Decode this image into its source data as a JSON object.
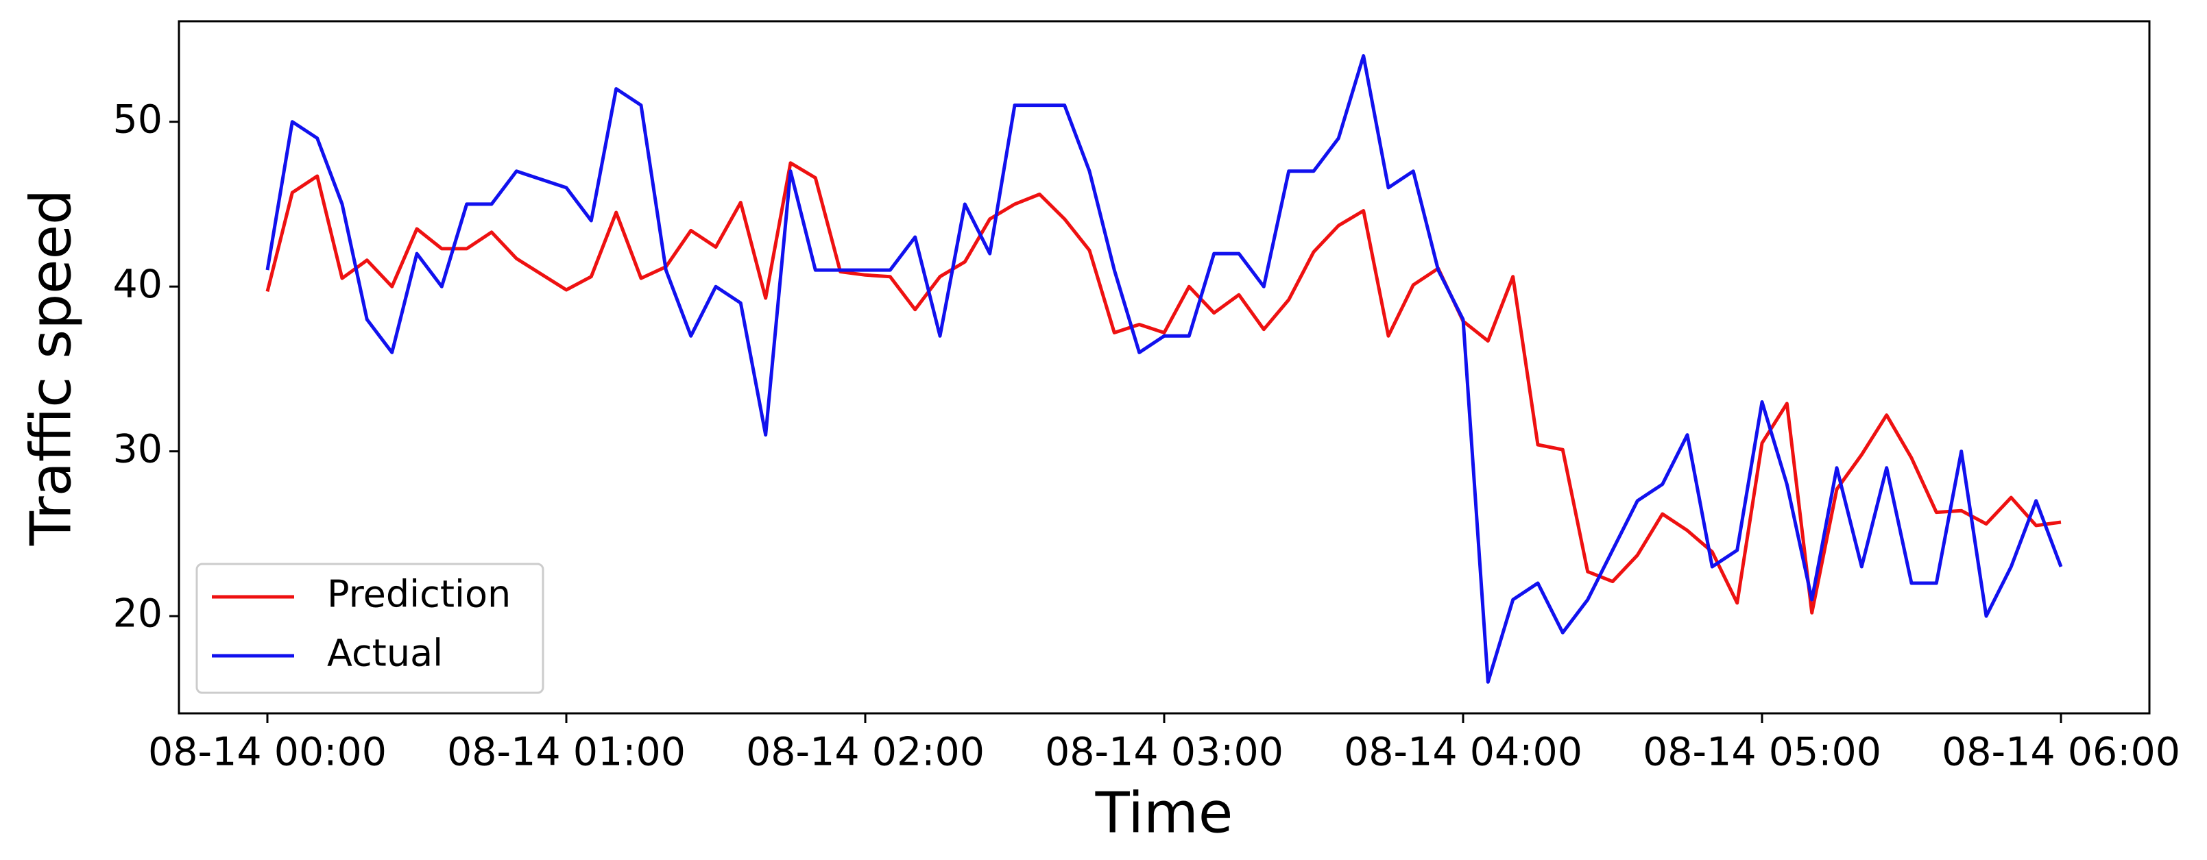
{
  "chart_data": {
    "type": "line",
    "x_label": "Time",
    "y_label": "Traffic speed",
    "x": [
      "08-14 00:00",
      "08-14 00:05",
      "08-14 00:10",
      "08-14 00:15",
      "08-14 00:20",
      "08-14 00:25",
      "08-14 00:30",
      "08-14 00:35",
      "08-14 00:40",
      "08-14 00:45",
      "08-14 00:50",
      "08-14 01:00",
      "08-14 01:05",
      "08-14 01:10",
      "08-14 01:15",
      "08-14 01:20",
      "08-14 01:25",
      "08-14 01:30",
      "08-14 01:35",
      "08-14 01:40",
      "08-14 01:45",
      "08-14 01:50",
      "08-14 01:55",
      "08-14 02:00",
      "08-14 02:05",
      "08-14 02:10",
      "08-14 02:15",
      "08-14 02:20",
      "08-14 02:25",
      "08-14 02:30",
      "08-14 02:35",
      "08-14 02:40",
      "08-14 02:45",
      "08-14 02:50",
      "08-14 02:55",
      "08-14 03:00",
      "08-14 03:05",
      "08-14 03:10",
      "08-14 03:15",
      "08-14 03:20",
      "08-14 03:25",
      "08-14 03:30",
      "08-14 03:35",
      "08-14 03:40",
      "08-14 03:45",
      "08-14 03:50",
      "08-14 03:55",
      "08-14 04:00",
      "08-14 04:05",
      "08-14 04:10",
      "08-14 04:15",
      "08-14 04:20",
      "08-14 04:25",
      "08-14 04:30",
      "08-14 04:35",
      "08-14 04:40",
      "08-14 04:45",
      "08-14 04:50",
      "08-14 04:55",
      "08-14 05:00",
      "08-14 05:05",
      "08-14 05:10",
      "08-14 05:15",
      "08-14 05:20",
      "08-14 05:25",
      "08-14 05:30",
      "08-14 05:35",
      "08-14 05:40",
      "08-14 05:45",
      "08-14 05:50",
      "08-14 05:55",
      "08-14 06:00"
    ],
    "series": [
      {
        "name": "Prediction",
        "color": "#ee1111",
        "values": [
          39.7,
          45.7,
          46.7,
          40.5,
          41.6,
          40,
          43.5,
          42.3,
          42.3,
          43.3,
          41.7,
          39.8,
          40.6,
          44.5,
          40.5,
          41.2,
          43.4,
          42.4,
          45.1,
          39.3,
          47.5,
          46.6,
          40.9,
          40.7,
          40.6,
          38.6,
          40.6,
          41.5,
          44.1,
          45,
          45.6,
          44.1,
          42.2,
          37.2,
          37.7,
          37.2,
          40,
          38.4,
          39.5,
          37.4,
          39.2,
          42.1,
          43.7,
          44.6,
          37,
          40.1,
          41.1,
          37.9,
          36.7,
          40.6,
          30.4,
          30.1,
          22.7,
          22.1,
          23.7,
          26.2,
          25.2,
          23.9,
          20.8,
          30.5,
          32.9,
          20.2,
          27.7,
          29.8,
          32.2,
          29.6,
          26.3,
          26.4,
          25.6,
          27.2,
          25.5,
          25.7
        ]
      },
      {
        "name": "Actual",
        "color": "#1111ee",
        "values": [
          41,
          50,
          49,
          45,
          38,
          36,
          42,
          40,
          45,
          45,
          47,
          46,
          44,
          52,
          51,
          41,
          37,
          40,
          39,
          31,
          47,
          41,
          41,
          41,
          41,
          43,
          37,
          45,
          42,
          51,
          51,
          51,
          47,
          41,
          36,
          37,
          37,
          42,
          42,
          40,
          47,
          47,
          49,
          54,
          46,
          47,
          41,
          38,
          16,
          21,
          22,
          19,
          21,
          24,
          27,
          28,
          31,
          23,
          24,
          33,
          28,
          21,
          29,
          23,
          29,
          22,
          22,
          30,
          20,
          23,
          27,
          23
        ]
      }
    ],
    "xticks": [
      "08-14 00:00",
      "08-14 01:00",
      "08-14 02:00",
      "08-14 03:00",
      "08-14 04:00",
      "08-14 05:00",
      "08-14 06:00"
    ],
    "ylim": [
      14.1,
      56.1
    ],
    "yticks": [
      20,
      30,
      40,
      50
    ],
    "legend": "lower left"
  }
}
